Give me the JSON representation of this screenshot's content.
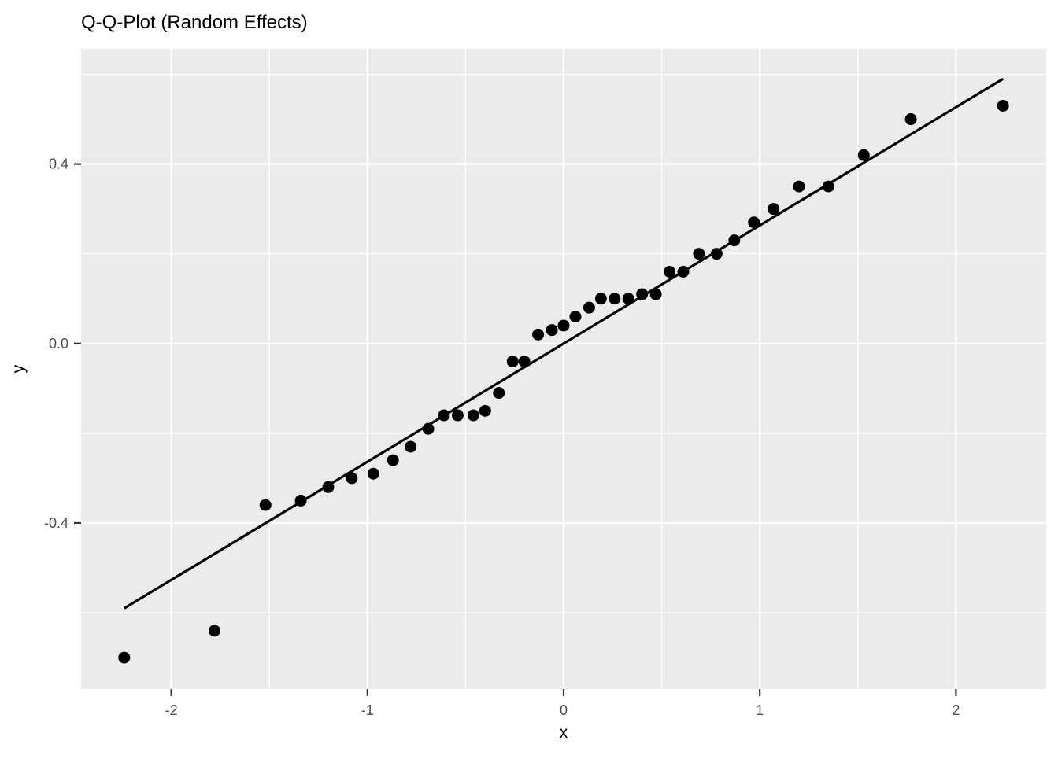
{
  "chart_data": {
    "type": "scatter",
    "title": "Q-Q-Plot (Random Effects)",
    "xlabel": "x",
    "ylabel": "y",
    "xlim": [
      -2.46,
      2.46
    ],
    "ylim": [
      -0.77,
      0.657
    ],
    "grid": true,
    "legend": false,
    "x_ticks": [
      -2,
      -1,
      0,
      1,
      2
    ],
    "x_tick_labels": [
      "-2",
      "-1",
      "0",
      "1",
      "2"
    ],
    "x_minor_ticks": [
      -1.5,
      -0.5,
      0.5,
      1.5
    ],
    "y_ticks": [
      -0.4,
      0.0,
      0.4
    ],
    "y_tick_labels": [
      "-0.4",
      "0.0",
      "0.4"
    ],
    "y_minor_ticks": [
      -0.6,
      -0.2,
      0.2,
      0.6
    ],
    "points": [
      [
        -2.24,
        -0.7
      ],
      [
        -1.78,
        -0.64
      ],
      [
        -1.52,
        -0.36
      ],
      [
        -1.34,
        -0.35
      ],
      [
        -1.2,
        -0.32
      ],
      [
        -1.08,
        -0.3
      ],
      [
        -0.97,
        -0.29
      ],
      [
        -0.87,
        -0.26
      ],
      [
        -0.78,
        -0.23
      ],
      [
        -0.69,
        -0.19
      ],
      [
        -0.61,
        -0.16
      ],
      [
        -0.54,
        -0.16
      ],
      [
        -0.46,
        -0.16
      ],
      [
        -0.4,
        -0.15
      ],
      [
        -0.33,
        -0.11
      ],
      [
        -0.26,
        -0.04
      ],
      [
        -0.2,
        -0.04
      ],
      [
        -0.13,
        0.02
      ],
      [
        -0.06,
        0.03
      ],
      [
        0.0,
        0.04
      ],
      [
        0.06,
        0.06
      ],
      [
        0.13,
        0.08
      ],
      [
        0.19,
        0.1
      ],
      [
        0.26,
        0.1
      ],
      [
        0.33,
        0.1
      ],
      [
        0.4,
        0.11
      ],
      [
        0.47,
        0.11
      ],
      [
        0.54,
        0.16
      ],
      [
        0.61,
        0.16
      ],
      [
        0.69,
        0.2
      ],
      [
        0.78,
        0.2
      ],
      [
        0.87,
        0.23
      ],
      [
        0.97,
        0.27
      ],
      [
        1.07,
        0.3
      ],
      [
        1.2,
        0.35
      ],
      [
        1.35,
        0.35
      ],
      [
        1.53,
        0.42
      ],
      [
        1.77,
        0.5
      ],
      [
        2.24,
        0.53
      ]
    ],
    "reference_line": {
      "x1": -2.24,
      "y1": -0.59,
      "x2": 2.24,
      "y2": 0.59
    },
    "colors": {
      "panel_background": "#EBEBEB",
      "grid": "#FFFFFF",
      "point": "#000000",
      "line": "#000000",
      "tick_mark": "#333333",
      "tick_label": "#4D4D4D",
      "title": "#000000",
      "page_background": "#FFFFFF"
    }
  }
}
